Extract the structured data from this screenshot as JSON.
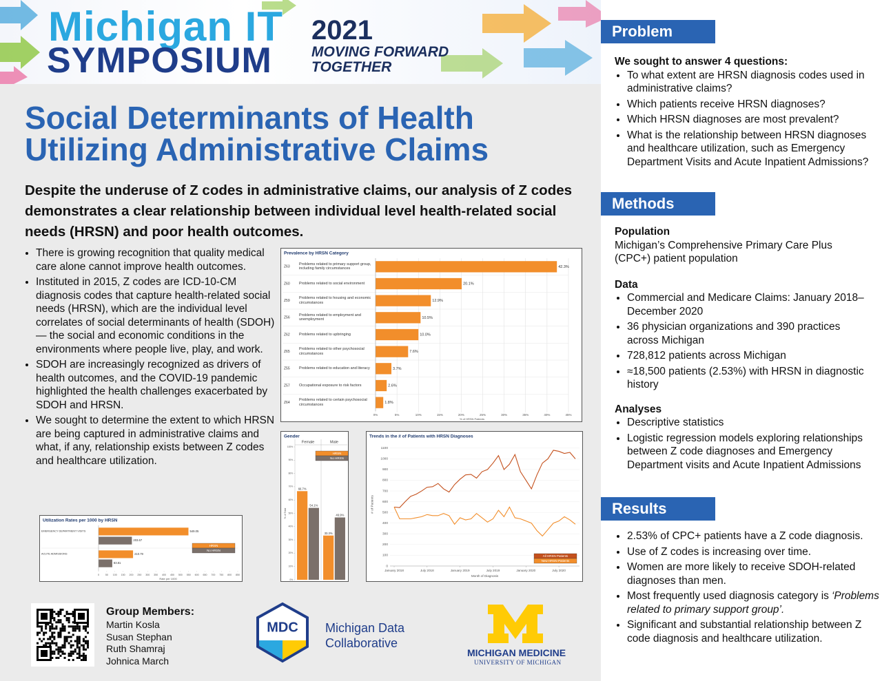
{
  "header": {
    "brand1": "Michigan IT",
    "brand2": "SYMPOSIUM",
    "year": "2021",
    "tagline1": "MOVING FORWARD",
    "tagline2": "TOGETHER"
  },
  "title": "Social Determinants of Health Utilizing Administrative Claims",
  "summary": "Despite the underuse of Z codes in administrative claims, our analysis of Z codes demonstrates a clear relationship between individual level health-related social needs (HRSN) and poor health outcomes.",
  "intro_bullets": [
    "There is growing recognition that quality medical care alone cannot improve health outcomes.",
    "Instituted in 2015, Z codes are ICD-10-CM diagnosis codes that capture health-related social needs (HRSN), which are the individual level correlates of social determinants of health (SDOH) — the social and economic conditions in the environments where people live, play, and work.",
    "SDOH are increasingly recognized as drivers of health outcomes, and the COVID-19 pandemic highlighted the health challenges exacerbated by SDOH and HRSN.",
    "We sought to determine the extent to which HRSN are being captured in administrative claims and what, if any, relationship exists between Z codes and healthcare utilization."
  ],
  "chart_data": [
    {
      "type": "hbar",
      "title": "Prevalence by HRSN Category",
      "codes": [
        "Z63",
        "Z60",
        "Z59",
        "Z56",
        "Z62",
        "Z65",
        "Z55",
        "Z57",
        "Z64"
      ],
      "categories": [
        "Problems related to primary support group, including family circumstances",
        "Problems related to social environment",
        "Problems related to housing and economic circumstances",
        "Problems related to employment and unemployment",
        "Problems related to upbringing",
        "Problems related to other psychosocial circumstances",
        "Problems related to education and literacy",
        "Occupational exposure to risk factors",
        "Problems related to certain psychosocial circumstances"
      ],
      "values": [
        42.3,
        20.1,
        12.9,
        10.5,
        10.0,
        7.6,
        3.7,
        2.6,
        1.8
      ],
      "value_labels": [
        "42.3%",
        "20.1%",
        "12.9%",
        "10.5%",
        "10.0%",
        "7.6%",
        "3.7%",
        "2.6%",
        "1.8%"
      ],
      "color": "#f28e2b",
      "xlim": [
        0,
        45
      ],
      "xticks": [
        {
          "value": 0,
          "label": "0%"
        },
        {
          "value": 5,
          "label": "5%"
        },
        {
          "value": 10,
          "label": "10%"
        },
        {
          "value": 15,
          "label": "15%"
        },
        {
          "value": 20,
          "label": "20%"
        },
        {
          "value": 25,
          "label": "25%"
        },
        {
          "value": 30,
          "label": "30%"
        },
        {
          "value": 35,
          "label": "35%"
        },
        {
          "value": 40,
          "label": "40%"
        },
        {
          "value": 45,
          "label": "45%"
        }
      ],
      "xlabel": "% of HRSN Patients",
      "grid": true
    },
    {
      "type": "bar",
      "title": "Gender",
      "categories": [
        "Female",
        "Male"
      ],
      "series": [
        {
          "name": "HRSN",
          "color": "#f28e2b",
          "values": [
            66.7,
            33.3
          ],
          "value_labels": [
            "66.7%",
            "33.3%"
          ]
        },
        {
          "name": "No HRSN",
          "color": "#7b706a",
          "values": [
            54.1,
            46.9
          ],
          "value_labels": [
            "54.1%",
            "46.9%"
          ]
        }
      ],
      "ylim": [
        0,
        100
      ],
      "yticks": [
        {
          "value": 0,
          "label": "0%"
        },
        {
          "value": 10,
          "label": "10%"
        },
        {
          "value": 20,
          "label": "20%"
        },
        {
          "value": 30,
          "label": "30%"
        },
        {
          "value": 40,
          "label": "40%"
        },
        {
          "value": 50,
          "label": "50%"
        },
        {
          "value": 60,
          "label": "60%"
        },
        {
          "value": 70,
          "label": "70%"
        },
        {
          "value": 80,
          "label": "80%"
        },
        {
          "value": 90,
          "label": "90%"
        },
        {
          "value": 100,
          "label": "100%"
        }
      ],
      "ylabel": "% of Total",
      "legend": "top-right"
    },
    {
      "type": "line",
      "title": "Trends in the # of Patients with HRSN Diagnoses",
      "x": [
        "2018-01",
        "2018-02",
        "2018-03",
        "2018-04",
        "2018-05",
        "2018-06",
        "2018-07",
        "2018-08",
        "2018-09",
        "2018-10",
        "2018-11",
        "2018-12",
        "2019-01",
        "2019-02",
        "2019-03",
        "2019-04",
        "2019-05",
        "2019-06",
        "2019-07",
        "2019-08",
        "2019-09",
        "2019-10",
        "2019-11",
        "2019-12",
        "2020-01",
        "2020-02",
        "2020-03",
        "2020-04",
        "2020-05",
        "2020-06",
        "2020-07",
        "2020-08",
        "2020-09",
        "2020-10"
      ],
      "xticks": [
        {
          "value": "2018-01",
          "label": "January 2018"
        },
        {
          "value": "2018-07",
          "label": "July 2018"
        },
        {
          "value": "2019-01",
          "label": "January 2019"
        },
        {
          "value": "2019-07",
          "label": "July 2019"
        },
        {
          "value": "2020-01",
          "label": "January 2020"
        },
        {
          "value": "2020-07",
          "label": "July 2020"
        }
      ],
      "series": [
        {
          "name": "All HRSN Patients",
          "color": "#c4501c",
          "values": [
            550,
            545,
            600,
            650,
            670,
            700,
            735,
            740,
            770,
            720,
            690,
            760,
            810,
            850,
            855,
            820,
            880,
            900,
            960,
            1030,
            900,
            950,
            1040,
            880,
            800,
            720,
            850,
            960,
            1000,
            1080,
            1070,
            1050,
            1060,
            1000
          ]
        },
        {
          "name": "New HRSN Patients",
          "color": "#f28e2b",
          "values": [
            550,
            440,
            440,
            440,
            450,
            460,
            480,
            470,
            470,
            490,
            470,
            390,
            450,
            430,
            440,
            490,
            450,
            410,
            440,
            520,
            460,
            550,
            450,
            440,
            420,
            400,
            330,
            280,
            340,
            400,
            420,
            460,
            430,
            390
          ]
        }
      ],
      "ylim": [
        0,
        1150
      ],
      "yticks": [
        0,
        100,
        200,
        300,
        400,
        500,
        600,
        700,
        800,
        900,
        1000,
        1100
      ],
      "ylabel": "# of Patients",
      "xlabel": "Month of Diagnosis",
      "legend": "bottom-right",
      "grid": true
    },
    {
      "type": "hbar",
      "title": "Utilization Rates per 1000 by HRSN",
      "categories": [
        "EMERGENCY DEPARTMENT VISITS",
        "ACUTE ADMISSIONS"
      ],
      "series": [
        {
          "name": "HRSN",
          "color": "#f28e2b",
          "values": [
            549.05,
            210.79
          ]
        },
        {
          "name": "No HRSN",
          "color": "#7b706a",
          "values": [
            203.67,
            83.81
          ]
        }
      ],
      "xlim": [
        0,
        850
      ],
      "xticks": [
        0,
        50,
        100,
        150,
        200,
        250,
        300,
        350,
        400,
        450,
        500,
        550,
        600,
        650,
        700,
        750,
        800,
        850
      ],
      "xlabel": "Rate per 1000",
      "legend": "right",
      "grid": false
    }
  ],
  "group": {
    "heading": "Group Members:",
    "members": [
      "Martin Kosla",
      "Susan Stephan",
      "Ruth Shamraj",
      "Johnica March"
    ]
  },
  "logos": {
    "mdc": "MDC",
    "mdc_name": "Michigan Data Collaborative",
    "michigan_medicine": "MICHIGAN MEDICINE",
    "university": "UNIVERSITY OF MICHIGAN"
  },
  "problem": {
    "heading": "Problem",
    "lead": "We sought to answer 4 questions:",
    "bullets": [
      "To what extent are HRSN diagnosis codes used in administrative claims?",
      "Which patients receive HRSN diagnoses?",
      "Which HRSN diagnoses are most prevalent?",
      "What is the relationship between HRSN diagnoses and healthcare utilization, such as Emergency Department Visits and Acute Inpatient Admissions?"
    ]
  },
  "methods": {
    "heading": "Methods",
    "population": {
      "heading": "Population",
      "text": "Michigan’s Comprehensive Primary Care Plus (CPC+) patient population"
    },
    "data": {
      "heading": "Data",
      "bullets": [
        "Commercial and Medicare Claims: January 2018–December 2020",
        "36 physician organizations and 390 practices across Michigan",
        "728,812 patients across Michigan",
        "≈18,500 patients (2.53%) with HRSN in diagnostic history"
      ]
    },
    "analyses": {
      "heading": "Analyses",
      "bullets": [
        "Descriptive statistics",
        "Logistic regression models exploring relationships between Z code diagnoses and Emergency Department visits and Acute Inpatient Admissions"
      ]
    }
  },
  "results": {
    "heading": "Results",
    "bullets": [
      "2.53% of CPC+ patients have a Z code diagnosis.",
      "Use of Z codes is increasing over time.",
      "Women are more likely to receive SDOH-related diagnoses than men.",
      {
        "text": "Most frequently used diagnosis category is",
        "emphasis": "‘Problems related to primary support group’."
      },
      "Significant and substantial relationship between Z code diagnosis and healthcare utilization."
    ]
  }
}
